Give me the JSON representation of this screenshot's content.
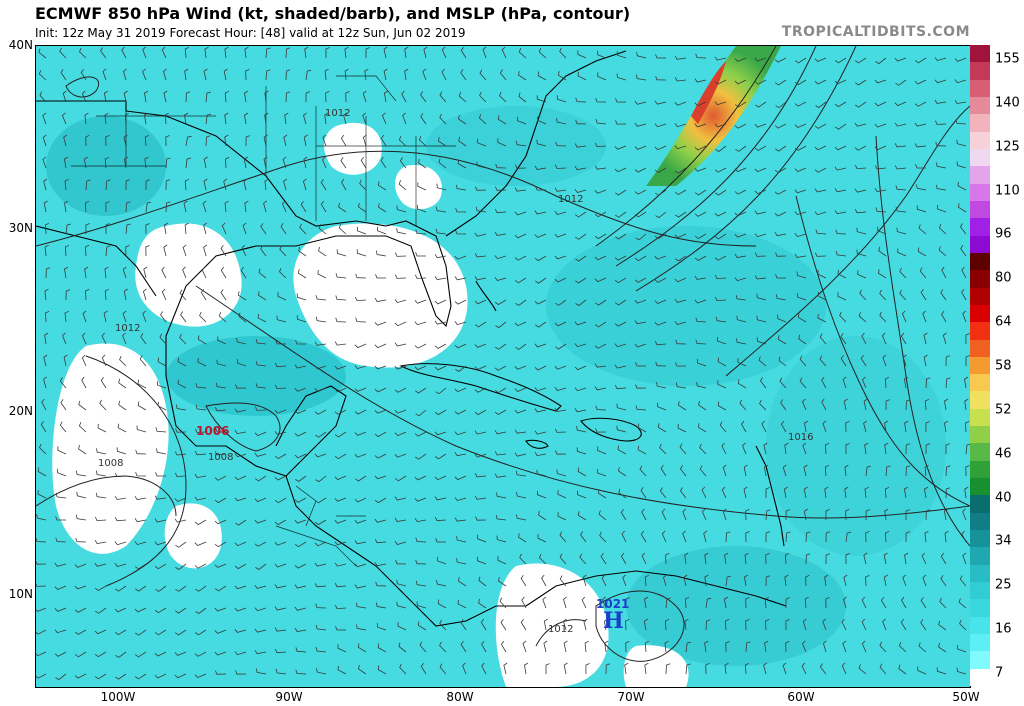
{
  "header": {
    "title": "ECMWF 850 hPa Wind (kt, shaded/barb), and MSLP (hPa, contour)",
    "subtitle": "Init: 12z May 31 2019   Forecast Hour: [48]   valid at 12z Sun, Jun 02 2019",
    "brand": "TROPICALTIDBITS.COM"
  },
  "axes": {
    "lat_labels": [
      "40N",
      "30N",
      "20N",
      "10N"
    ],
    "lon_labels": [
      "100W",
      "90W",
      "80W",
      "70W",
      "60W",
      "50W"
    ]
  },
  "colorbar": {
    "labels": [
      "155",
      "140",
      "125",
      "110",
      "96",
      "80",
      "64",
      "58",
      "52",
      "46",
      "40",
      "34",
      "25",
      "16",
      "7"
    ],
    "colors": [
      "#a0143c",
      "#c23a57",
      "#d85e74",
      "#e58a99",
      "#f2b3bd",
      "#f6d2d8",
      "#f0d8f0",
      "#e4a4ec",
      "#d878e8",
      "#c04ae0",
      "#a020e6",
      "#8c0ad2",
      "#5c0000",
      "#8a0000",
      "#b00000",
      "#d80000",
      "#f03010",
      "#f06020",
      "#f59a30",
      "#f8c850",
      "#f0e060",
      "#c8e050",
      "#90d048",
      "#58b848",
      "#30a038",
      "#189030",
      "#0a6e6e",
      "#107e84",
      "#16929a",
      "#1fa8b0",
      "#28bcc4",
      "#32cdd4",
      "#3ad8de",
      "#48e4ea",
      "#5cf0f4",
      "#80fafc",
      "#ffffff"
    ]
  },
  "pressure_labels": [
    "1012",
    "1012",
    "1012",
    "1016",
    "1008",
    "1008",
    "1012"
  ],
  "low": {
    "value": "1006"
  },
  "high": {
    "value": "1021",
    "symbol": "H"
  }
}
